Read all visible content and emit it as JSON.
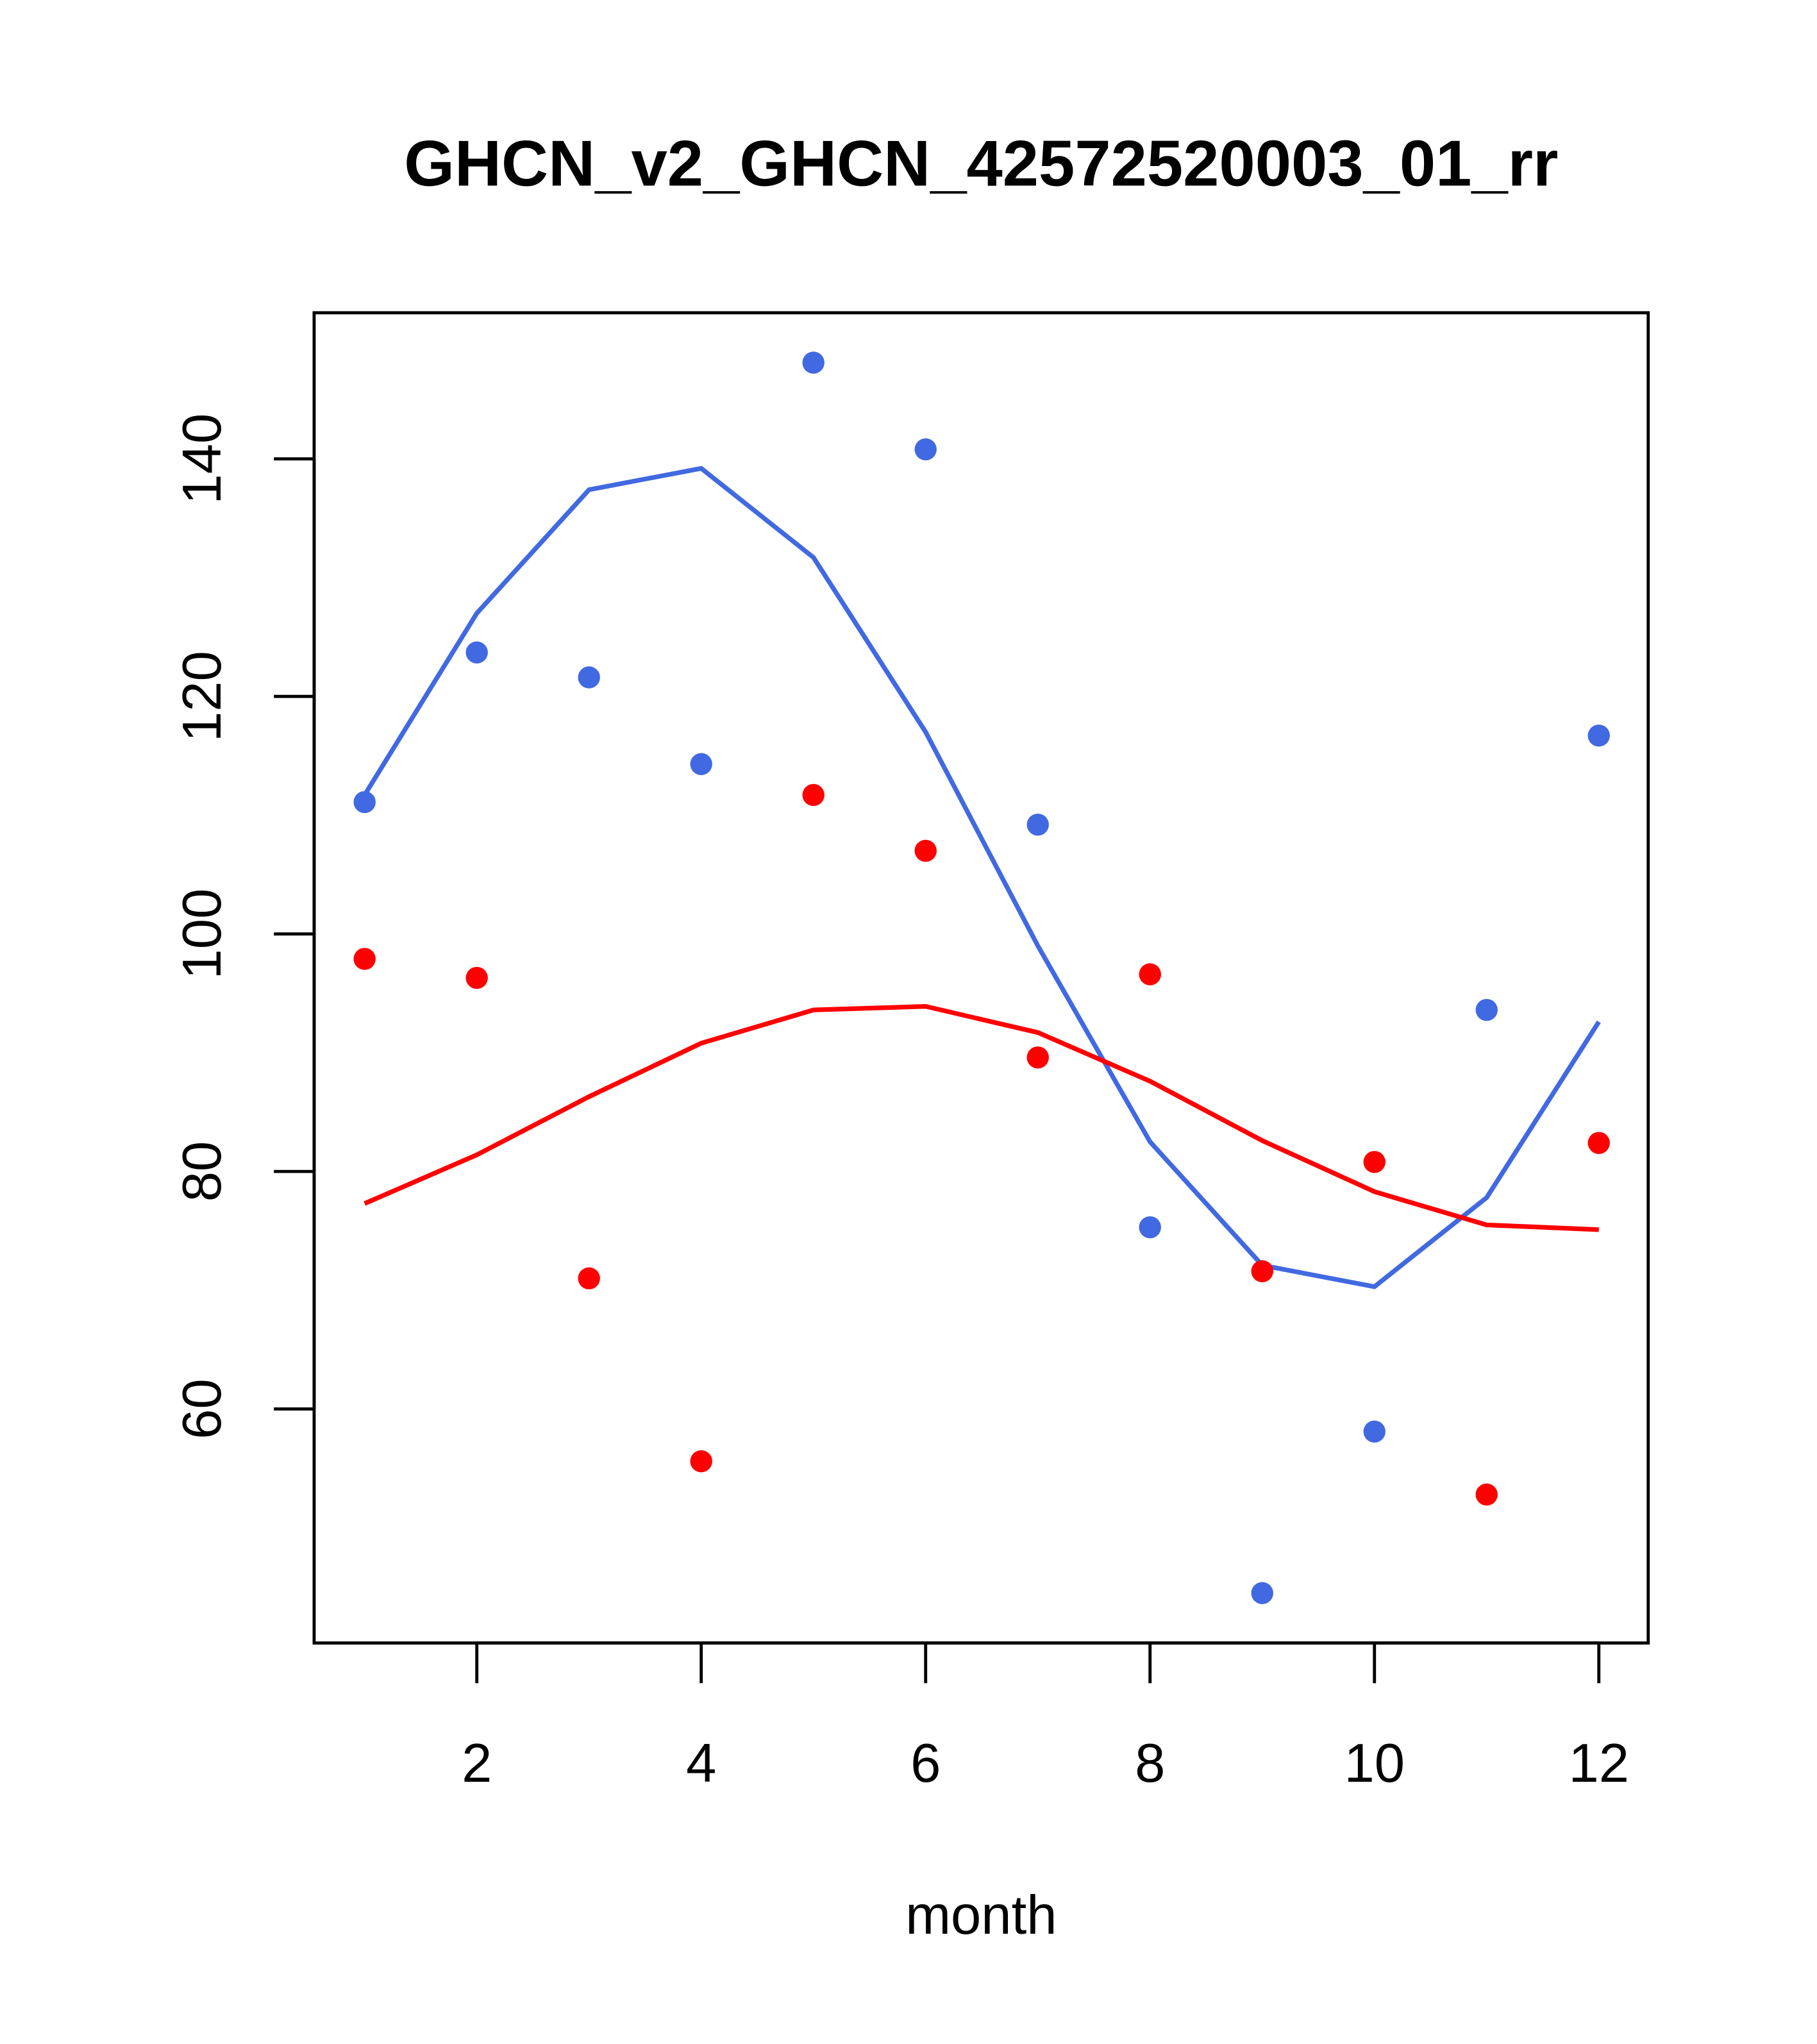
{
  "chart_data": {
    "type": "line",
    "title": "GHCN_v2_GHCN_42572520003_01_rr",
    "xlabel": "month",
    "ylabel": "",
    "xlim": [
      0.55,
      12.44
    ],
    "ylim": [
      40.3,
      152.3
    ],
    "x_ticks": [
      2,
      4,
      6,
      8,
      10,
      12
    ],
    "y_ticks": [
      60,
      80,
      100,
      120,
      140
    ],
    "x": [
      1,
      2,
      3,
      4,
      5,
      6,
      7,
      8,
      9,
      10,
      11,
      12
    ],
    "series": [
      {
        "name": "blue points",
        "kind": "points",
        "color": "#4169e1",
        "values": [
          111.1,
          123.7,
          121.6,
          114.3,
          148.1,
          140.8,
          109.2,
          75.3,
          44.5,
          58.1,
          93.6,
          116.7
        ]
      },
      {
        "name": "blue line",
        "kind": "line",
        "color": "#4169e1",
        "values": [
          111.7,
          127.0,
          137.4,
          139.2,
          131.7,
          117.0,
          99.0,
          82.5,
          72.1,
          70.3,
          77.8,
          92.6
        ]
      },
      {
        "name": "red points",
        "kind": "points",
        "color": "#ff0000",
        "values": [
          97.9,
          96.3,
          71.0,
          55.6,
          111.7,
          107.0,
          89.6,
          96.6,
          71.6,
          80.8,
          52.8,
          82.4
        ]
      },
      {
        "name": "red line",
        "kind": "line",
        "color": "#ff0000",
        "values": [
          77.3,
          81.4,
          86.3,
          90.8,
          93.6,
          93.9,
          91.7,
          87.6,
          82.6,
          78.3,
          75.5,
          75.1
        ]
      }
    ]
  }
}
